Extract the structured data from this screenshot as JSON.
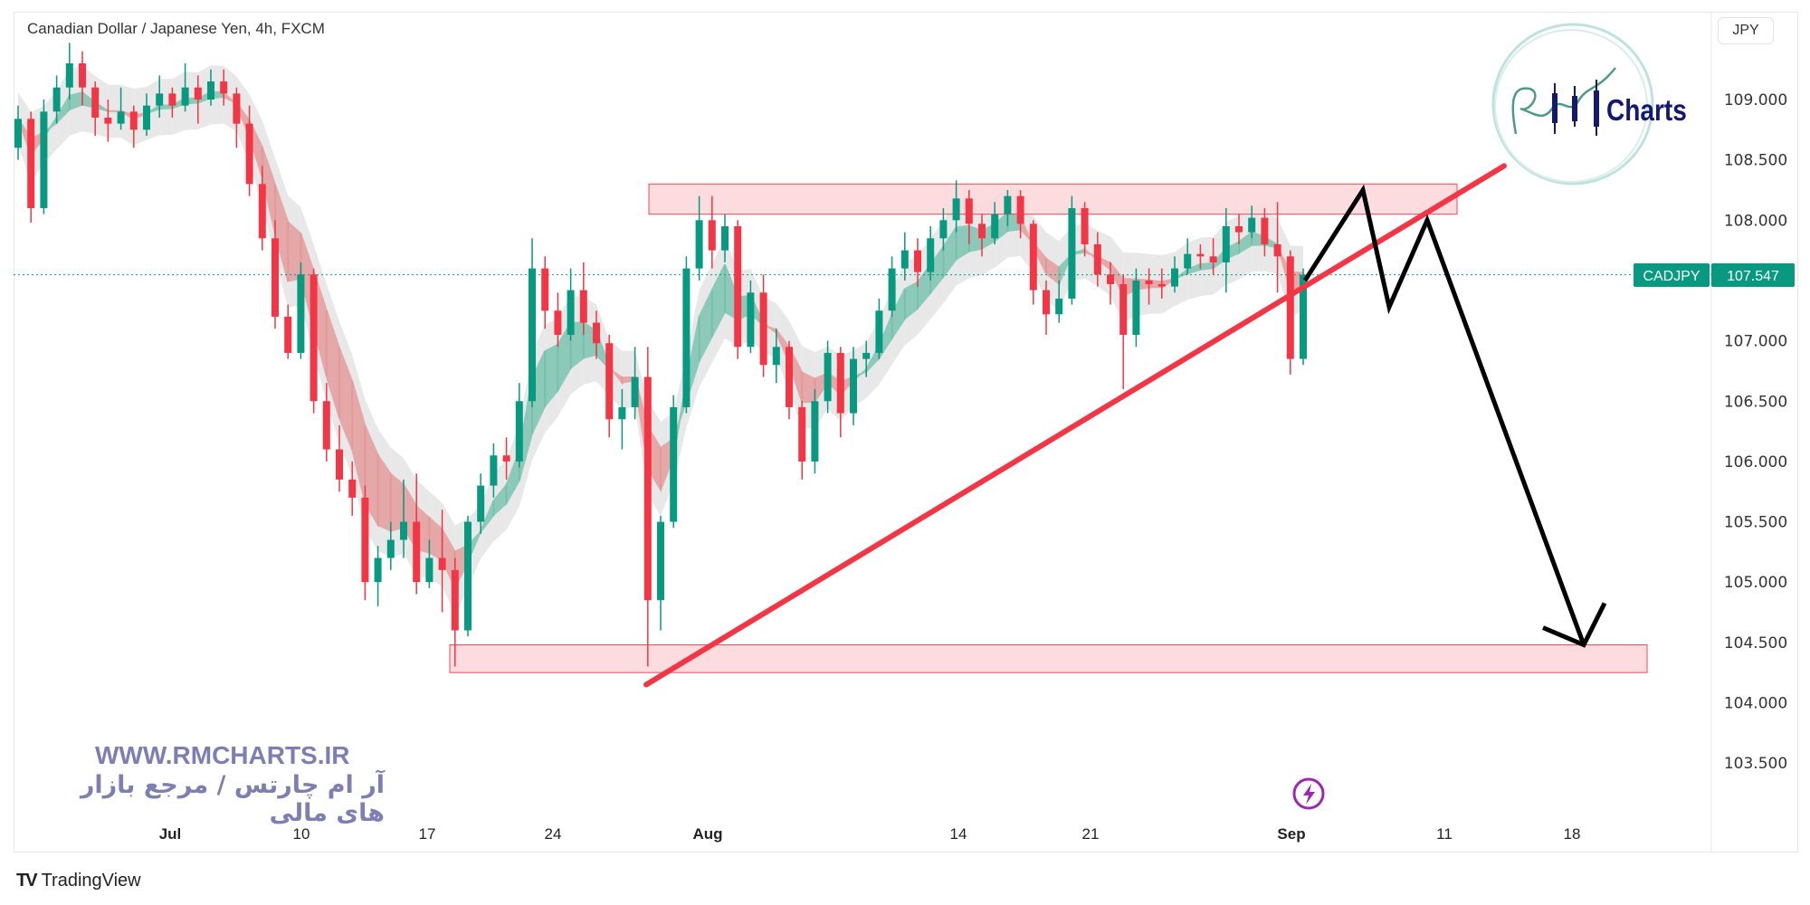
{
  "header": {
    "title": "Canadian Dollar / Japanese Yen, 4h, FXCM",
    "currency_button": "JPY"
  },
  "watermark": {
    "url": "WWW.RMCHARTS.IR",
    "tagline": "آر ام چارتس / مرجع بازار های مالی",
    "logo_text": "Charts",
    "logo_mark": "RM"
  },
  "footer": {
    "brand": "TradingView",
    "brand_logo": "TV"
  },
  "colors": {
    "up": "#089981",
    "down": "#f23645",
    "zone_fill": "#fcd9dc",
    "zone_border": "#f23645",
    "trendline": "#f23645",
    "projection": "#000000",
    "price_label": "#089981",
    "watermark": "#7d7fb2"
  },
  "chart_data": {
    "type": "candlestick",
    "symbol": "CADJPY",
    "last_price_label": "107.547",
    "last_price": 107.547,
    "ylim": [
      103.0,
      109.8
    ],
    "y_ticks": [
      "109.000",
      "108.500",
      "108.000",
      "107.000",
      "106.500",
      "106.000",
      "105.500",
      "105.000",
      "104.500",
      "104.000",
      "103.500"
    ],
    "x_ticks": [
      "Jul",
      "10",
      "17",
      "24",
      "Aug",
      "14",
      "21",
      "Sep",
      "11",
      "18"
    ],
    "grid": false,
    "candles": [
      [
        108.6,
        108.95,
        108.5,
        108.84
      ],
      [
        108.84,
        108.9,
        107.98,
        108.1
      ],
      [
        108.1,
        109.0,
        108.05,
        108.9
      ],
      [
        108.9,
        109.2,
        108.8,
        109.1
      ],
      [
        109.1,
        109.47,
        109.0,
        109.3
      ],
      [
        109.3,
        109.4,
        108.95,
        109.1
      ],
      [
        109.1,
        109.15,
        108.7,
        108.85
      ],
      [
        108.85,
        109.0,
        108.65,
        108.8
      ],
      [
        108.8,
        109.1,
        108.75,
        108.9
      ],
      [
        108.9,
        108.95,
        108.6,
        108.75
      ],
      [
        108.75,
        109.05,
        108.7,
        108.95
      ],
      [
        108.95,
        109.2,
        108.85,
        109.05
      ],
      [
        109.05,
        109.1,
        108.85,
        108.95
      ],
      [
        108.95,
        109.3,
        108.9,
        109.1
      ],
      [
        109.1,
        109.2,
        108.8,
        109.0
      ],
      [
        109.0,
        109.25,
        108.95,
        109.15
      ],
      [
        109.15,
        109.25,
        108.95,
        109.05
      ],
      [
        109.05,
        109.1,
        108.6,
        108.8
      ],
      [
        108.8,
        108.95,
        108.2,
        108.3
      ],
      [
        108.3,
        108.45,
        107.75,
        107.85
      ],
      [
        107.85,
        108.0,
        107.1,
        107.2
      ],
      [
        107.2,
        107.3,
        106.85,
        106.9
      ],
      [
        106.9,
        107.65,
        106.85,
        107.55
      ],
      [
        107.55,
        107.6,
        106.4,
        106.5
      ],
      [
        106.5,
        106.65,
        106.0,
        106.1
      ],
      [
        106.1,
        106.3,
        105.75,
        105.85
      ],
      [
        105.85,
        106.0,
        105.55,
        105.7
      ],
      [
        105.7,
        105.8,
        104.85,
        105.0
      ],
      [
        105.0,
        105.3,
        104.8,
        105.2
      ],
      [
        105.2,
        105.5,
        105.1,
        105.35
      ],
      [
        105.35,
        105.85,
        105.2,
        105.5
      ],
      [
        105.5,
        105.9,
        104.9,
        105.0
      ],
      [
        105.0,
        105.35,
        104.95,
        105.2
      ],
      [
        105.2,
        105.6,
        104.75,
        105.1
      ],
      [
        105.1,
        105.2,
        104.3,
        104.6
      ],
      [
        104.6,
        105.55,
        104.55,
        105.5
      ],
      [
        105.5,
        105.9,
        105.4,
        105.8
      ],
      [
        105.8,
        106.15,
        105.7,
        106.05
      ],
      [
        106.05,
        106.2,
        105.85,
        106.0
      ],
      [
        106.0,
        106.65,
        105.95,
        106.5
      ],
      [
        106.5,
        107.85,
        106.45,
        107.6
      ],
      [
        107.6,
        107.7,
        107.1,
        107.25
      ],
      [
        107.25,
        107.4,
        106.95,
        107.05
      ],
      [
        107.05,
        107.6,
        107.0,
        107.42
      ],
      [
        107.42,
        107.65,
        107.05,
        107.15
      ],
      [
        107.15,
        107.25,
        106.85,
        106.98
      ],
      [
        106.98,
        107.05,
        106.2,
        106.35
      ],
      [
        106.35,
        106.6,
        106.1,
        106.45
      ],
      [
        106.45,
        106.95,
        106.35,
        106.7
      ],
      [
        106.7,
        106.95,
        104.3,
        104.85
      ],
      [
        104.85,
        105.55,
        104.6,
        105.5
      ],
      [
        105.5,
        106.55,
        105.45,
        106.45
      ],
      [
        106.45,
        107.7,
        106.4,
        107.6
      ],
      [
        107.6,
        108.2,
        107.5,
        108.0
      ],
      [
        108.0,
        108.2,
        107.6,
        107.75
      ],
      [
        107.75,
        108.05,
        107.65,
        107.95
      ],
      [
        107.95,
        108.0,
        106.85,
        106.95
      ],
      [
        106.95,
        107.5,
        106.9,
        107.4
      ],
      [
        107.4,
        107.55,
        106.7,
        106.8
      ],
      [
        106.8,
        107.1,
        106.65,
        106.95
      ],
      [
        106.95,
        107.0,
        106.35,
        106.45
      ],
      [
        106.45,
        106.5,
        105.85,
        106.0
      ],
      [
        106.0,
        106.6,
        105.9,
        106.5
      ],
      [
        106.5,
        107.0,
        106.4,
        106.9
      ],
      [
        106.9,
        106.95,
        106.2,
        106.4
      ],
      [
        106.4,
        106.95,
        106.3,
        106.85
      ],
      [
        106.85,
        107.0,
        106.7,
        106.9
      ],
      [
        106.9,
        107.35,
        106.85,
        107.25
      ],
      [
        107.25,
        107.7,
        107.2,
        107.6
      ],
      [
        107.6,
        107.9,
        107.5,
        107.75
      ],
      [
        107.75,
        107.85,
        107.45,
        107.57
      ],
      [
        107.57,
        107.95,
        107.5,
        107.85
      ],
      [
        107.85,
        108.1,
        107.75,
        108.0
      ],
      [
        108.0,
        108.33,
        107.9,
        108.18
      ],
      [
        108.18,
        108.25,
        107.8,
        107.97
      ],
      [
        107.97,
        108.05,
        107.7,
        107.85
      ],
      [
        107.85,
        108.15,
        107.8,
        108.05
      ],
      [
        108.05,
        108.25,
        107.95,
        108.2
      ],
      [
        108.2,
        108.25,
        107.85,
        107.97
      ],
      [
        107.97,
        108.0,
        107.3,
        107.42
      ],
      [
        107.42,
        107.5,
        107.05,
        107.22
      ],
      [
        107.22,
        107.5,
        107.15,
        107.35
      ],
      [
        107.35,
        108.2,
        107.3,
        108.1
      ],
      [
        108.1,
        108.15,
        107.7,
        107.8
      ],
      [
        107.8,
        107.9,
        107.45,
        107.55
      ],
      [
        107.55,
        107.65,
        107.3,
        107.47
      ],
      [
        107.47,
        107.55,
        106.6,
        107.05
      ],
      [
        107.05,
        107.6,
        106.95,
        107.5
      ],
      [
        107.5,
        107.6,
        107.3,
        107.47
      ],
      [
        107.47,
        107.6,
        107.35,
        107.45
      ],
      [
        107.45,
        107.7,
        107.4,
        107.6
      ],
      [
        107.6,
        107.85,
        107.55,
        107.72
      ],
      [
        107.72,
        107.8,
        107.6,
        107.7
      ],
      [
        107.7,
        107.85,
        107.55,
        107.65
      ],
      [
        107.65,
        108.1,
        107.4,
        107.95
      ],
      [
        107.95,
        108.05,
        107.8,
        107.9
      ],
      [
        107.9,
        108.12,
        107.85,
        108.02
      ],
      [
        108.02,
        108.1,
        107.7,
        107.8
      ],
      [
        107.8,
        108.15,
        107.4,
        107.7
      ],
      [
        107.7,
        107.75,
        106.72,
        106.85
      ],
      [
        106.85,
        107.6,
        106.8,
        107.547
      ]
    ],
    "annotations": {
      "resistance_zone": [
        108.05,
        108.3
      ],
      "support_zone": [
        104.25,
        104.48
      ],
      "trendline": [
        104.15,
        108.45
      ],
      "projection_prices": [
        107.5,
        108.25,
        107.28,
        108.0,
        104.48
      ]
    }
  }
}
